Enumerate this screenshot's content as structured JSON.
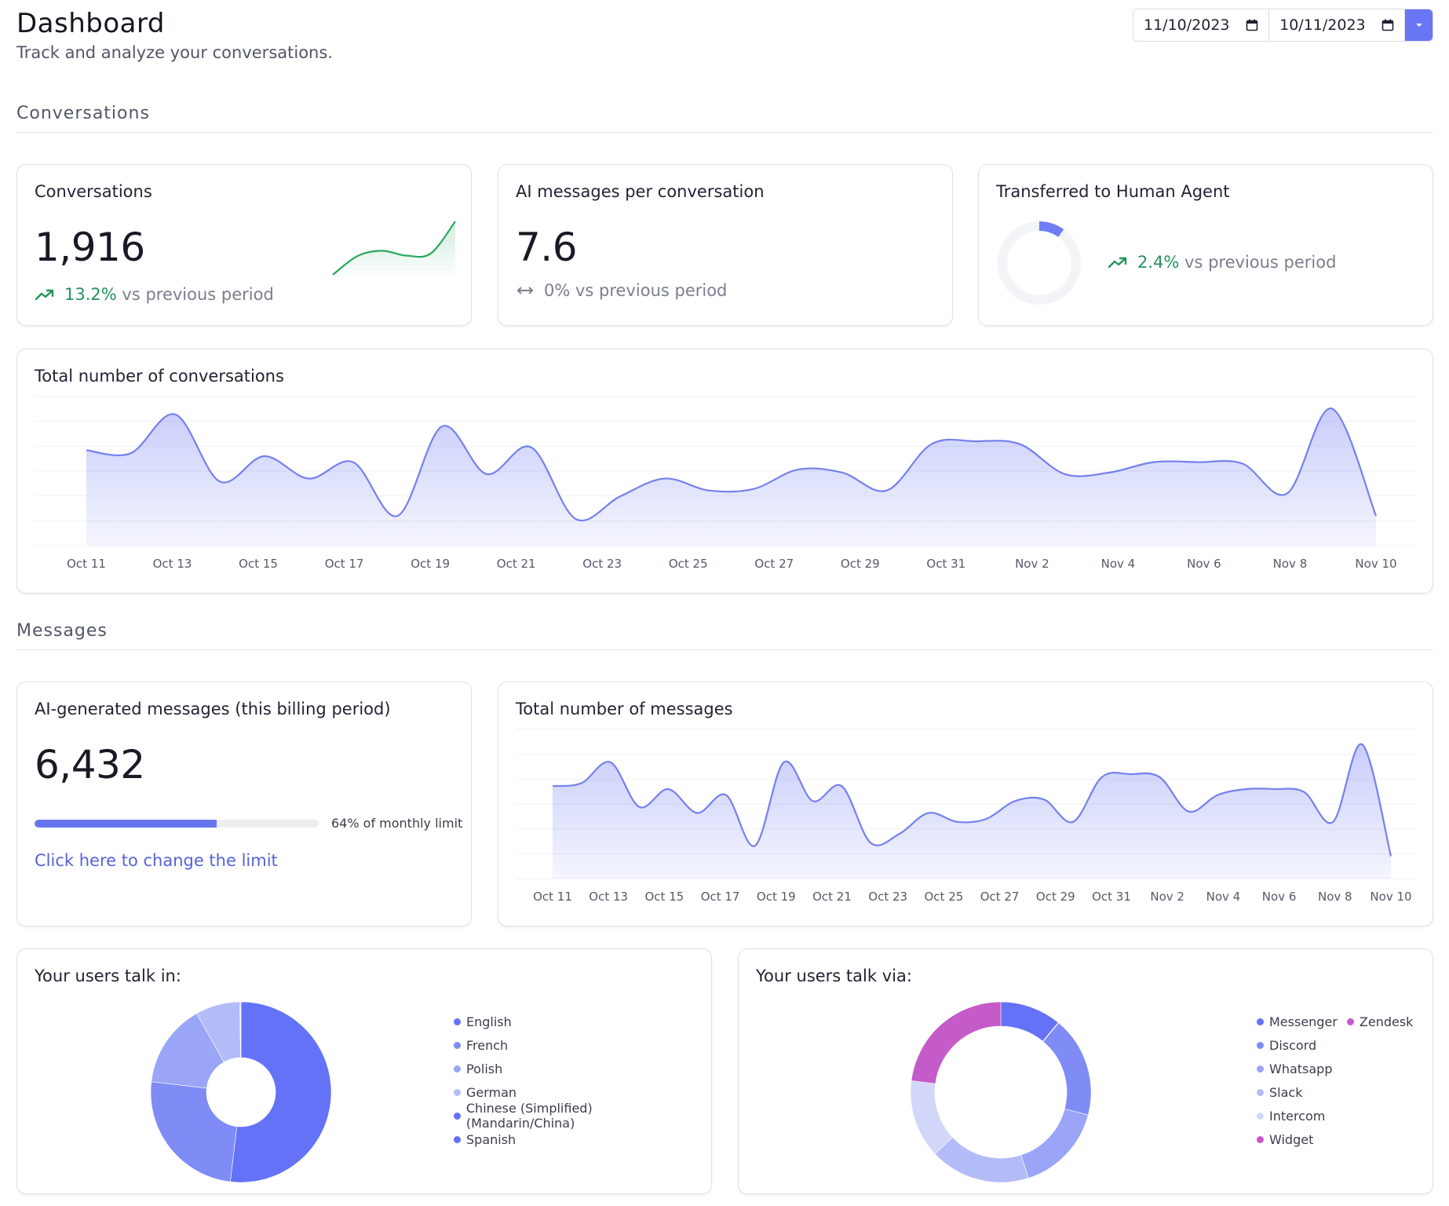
{
  "header": {
    "title": "Dashboard",
    "subtitle": "Track and analyze your conversations."
  },
  "date_range": {
    "start": "11/10/2023",
    "end": "10/11/2023"
  },
  "sections": {
    "conversations": "Conversations",
    "messages": "Messages"
  },
  "kpis": {
    "conversations": {
      "title": "Conversations",
      "value": "1,916",
      "change_pct": "13.2%",
      "change_text": "vs previous period",
      "sparkline": [
        0.0,
        0.35,
        0.45,
        0.36,
        0.4,
        1.0
      ]
    },
    "ai_per_conv": {
      "title": "AI messages per conversation",
      "value": "7.6",
      "change_text": "0% vs previous period"
    },
    "transferred": {
      "title": "Transferred to Human Agent",
      "change_pct": "2.4%",
      "change_text": "vs previous period",
      "fraction": 0.1
    }
  },
  "ai_generated": {
    "title": "AI-generated messages (this billing period)",
    "value": "6,432",
    "progress": 0.64,
    "progress_label": "64% of monthly limit",
    "link_text": "Click here to change the limit"
  },
  "chart_data": [
    {
      "type": "area",
      "title": "Total number of conversations",
      "x_ticks": [
        "Oct 11",
        "Oct 13",
        "Oct 15",
        "Oct 17",
        "Oct 19",
        "Oct 21",
        "Oct 23",
        "Oct 25",
        "Oct 27",
        "Oct 29",
        "Oct 31",
        "Nov 2",
        "Nov 4",
        "Nov 6",
        "Nov 8",
        "Nov 10"
      ],
      "values": [
        64,
        62,
        88,
        43,
        60,
        45,
        56,
        20,
        80,
        48,
        66,
        18,
        33,
        45,
        37,
        38,
        51,
        49,
        37,
        68,
        70,
        68,
        48,
        49,
        56,
        56,
        55,
        35,
        92,
        20
      ],
      "ylim": [
        0,
        100
      ],
      "grid": true
    },
    {
      "type": "area",
      "title": "Total number of messages",
      "x_ticks": [
        "Oct 11",
        "Oct 13",
        "Oct 15",
        "Oct 17",
        "Oct 19",
        "Oct 21",
        "Oct 23",
        "Oct 25",
        "Oct 27",
        "Oct 29",
        "Oct 31",
        "Nov 2",
        "Nov 4",
        "Nov 6",
        "Nov 8",
        "Nov 10"
      ],
      "values": [
        62,
        64,
        78,
        48,
        60,
        44,
        56,
        22,
        78,
        52,
        62,
        24,
        30,
        44,
        38,
        40,
        52,
        53,
        38,
        68,
        70,
        68,
        45,
        56,
        60,
        60,
        58,
        38,
        90,
        15
      ],
      "ylim": [
        0,
        100
      ],
      "grid": true
    },
    {
      "type": "pie",
      "title": "Your users talk in:",
      "labels": [
        "English",
        "French",
        "Polish",
        "German",
        "Chinese (Simplified) (Mandarin/China)",
        "Spanish"
      ],
      "values": [
        52,
        25,
        15,
        8,
        0.1,
        0.1
      ],
      "colors": [
        "#6472f7",
        "#7f8cf6",
        "#9aa5f7",
        "#b4bcf8",
        "#6472f7",
        "#6472f7"
      ]
    },
    {
      "type": "pie",
      "title": "Your users talk via:",
      "labels": [
        "Messenger",
        "Zendesk",
        "Discord",
        "Whatsapp",
        "Slack",
        "Intercom",
        "Widget"
      ],
      "values": [
        11,
        0.1,
        18,
        16,
        18,
        14,
        23
      ],
      "colors": [
        "#6472f7",
        "#c55ac9",
        "#7f8cf6",
        "#9aa5f7",
        "#b4bcf8",
        "#d2d7fa",
        "#c55ac9"
      ]
    }
  ],
  "legend_order": {
    "via": [
      [
        "Messenger",
        "Zendesk"
      ],
      [
        "Discord"
      ],
      [
        "Whatsapp"
      ],
      [
        "Slack"
      ],
      [
        "Intercom"
      ],
      [
        "Widget"
      ]
    ]
  },
  "colors": {
    "accent": "#6472f7",
    "positive": "#23925a",
    "sparkline": "#2aa760"
  },
  "icons": {
    "trend_up": "trend-up-icon",
    "flat": "arrows-horizontal-icon",
    "calendar": "calendar-icon",
    "dropdown": "chevron-down-icon"
  }
}
